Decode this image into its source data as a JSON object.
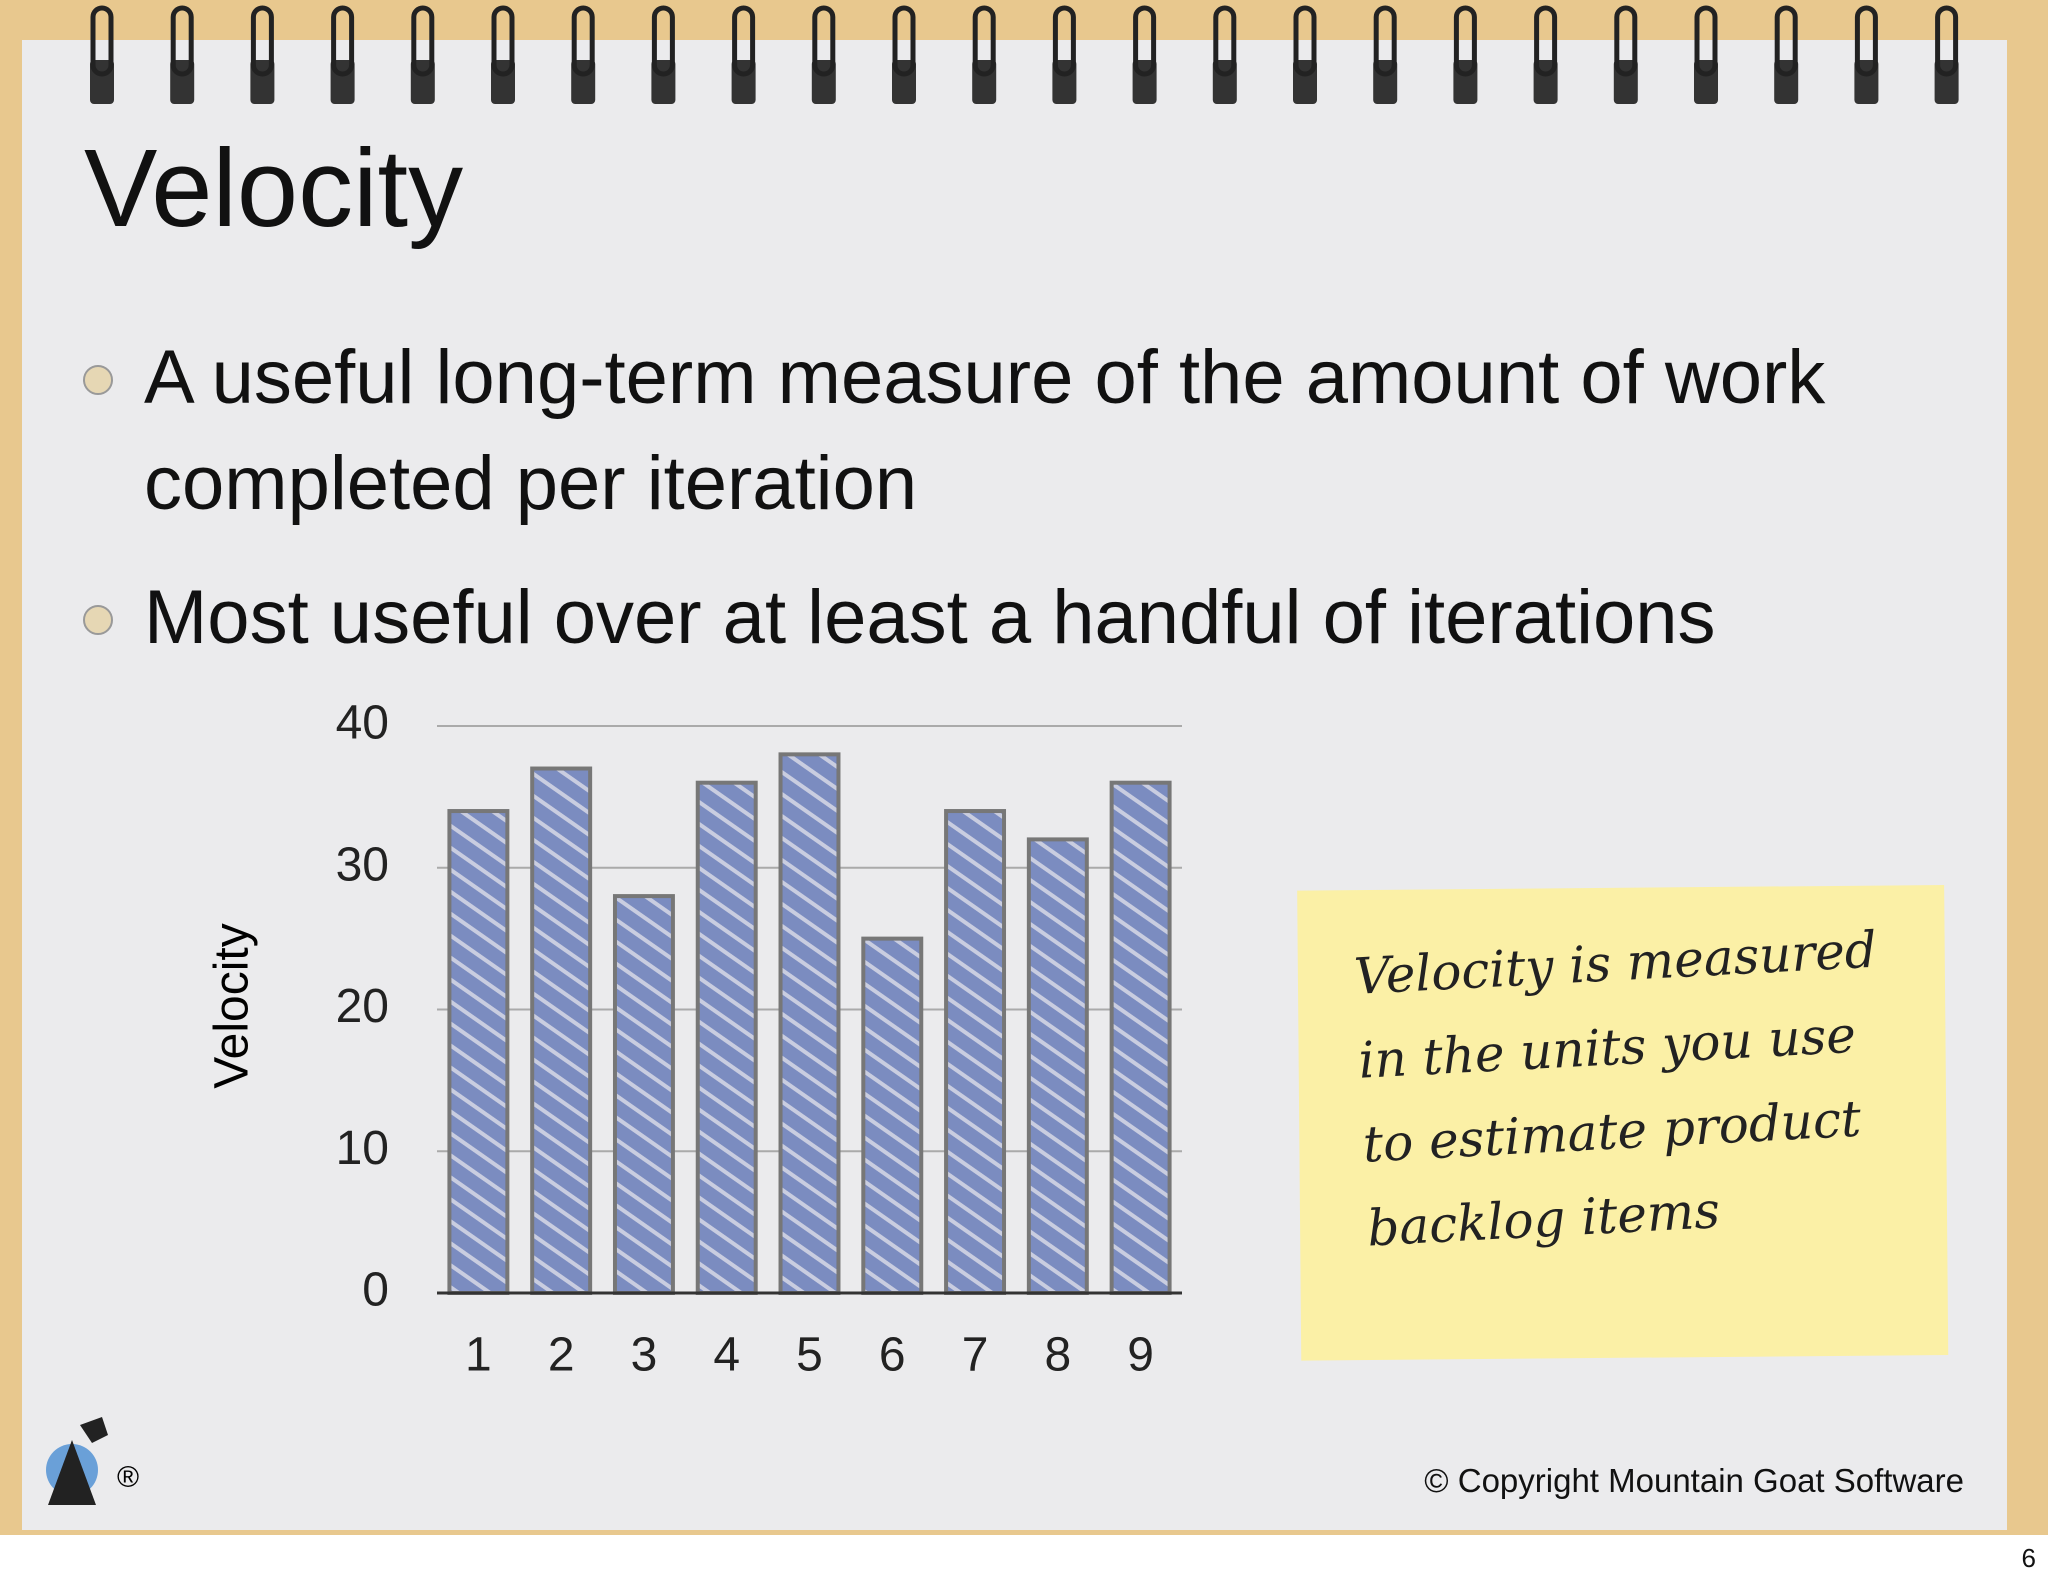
{
  "slide": {
    "title": "Velocity",
    "bullets": [
      "A useful long-term measure of the amount of work completed per iteration",
      "Most useful over at least a handful of iterations"
    ],
    "note": [
      "Velocity is measured",
      "in the units you use",
      "to estimate product",
      "backlog items"
    ],
    "copyright": "© Copyright Mountain Goat Software",
    "logo_mark": "®",
    "page_number": "6"
  },
  "chart_data": {
    "type": "bar",
    "categories": [
      "1",
      "2",
      "3",
      "4",
      "5",
      "6",
      "7",
      "8",
      "9"
    ],
    "values": [
      34,
      37,
      28,
      36,
      38,
      25,
      34,
      32,
      36
    ],
    "color": "#7b8cc0",
    "ylabel": "Velocity",
    "ylim": [
      0,
      40
    ],
    "yticks": [
      0,
      10,
      20,
      30,
      40
    ],
    "grid": true
  }
}
